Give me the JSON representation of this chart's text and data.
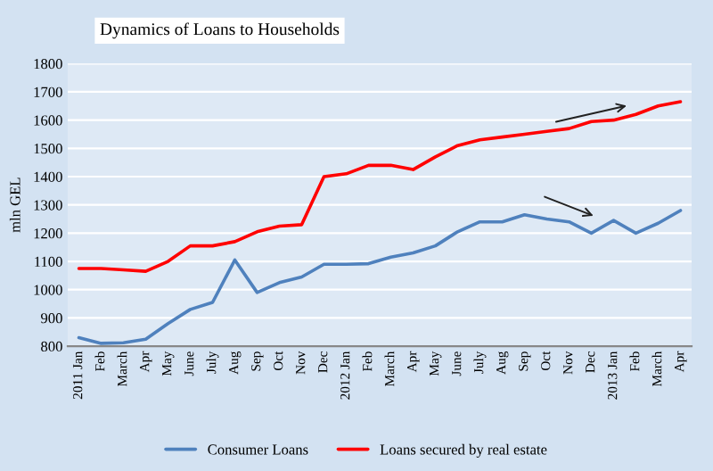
{
  "chart_data": {
    "type": "line",
    "title": "Dynamics of Loans to Households",
    "ylabel": "mln GEL",
    "categories": [
      "2011 Jan",
      "Feb",
      "March",
      "Apr",
      "May",
      "June",
      "July",
      "Aug",
      "Sep",
      "Oct",
      "Nov",
      "Dec",
      "2012 Jan",
      "Feb",
      "March",
      "Apr",
      "May",
      "June",
      "July",
      "Aug",
      "Sep",
      "Oct",
      "Nov",
      "Dec",
      "2013 Jan",
      "Feb",
      "March",
      "Apr"
    ],
    "series": [
      {
        "name": "Consumer Loans",
        "color": "#4f81bd",
        "values": [
          830,
          810,
          812,
          825,
          880,
          930,
          955,
          1105,
          990,
          1025,
          1045,
          1090,
          1090,
          1092,
          1115,
          1130,
          1155,
          1205,
          1240,
          1240,
          1265,
          1250,
          1240,
          1200,
          1245,
          1200,
          1235,
          1280
        ]
      },
      {
        "name": "Loans secured by real estate",
        "color": "#ff0000",
        "values": [
          1075,
          1075,
          1070,
          1065,
          1100,
          1155,
          1155,
          1170,
          1205,
          1225,
          1230,
          1400,
          1410,
          1440,
          1440,
          1425,
          1470,
          1510,
          1530,
          1540,
          1550,
          1560,
          1570,
          1595,
          1600,
          1620,
          1650,
          1665
        ]
      }
    ],
    "ylim": [
      800,
      1800
    ],
    "yticks": [
      800,
      900,
      1000,
      1100,
      1200,
      1300,
      1400,
      1500,
      1600,
      1700,
      1800
    ],
    "grid": "y",
    "legend": "bottom",
    "marker": "none",
    "line_style": "solid"
  }
}
